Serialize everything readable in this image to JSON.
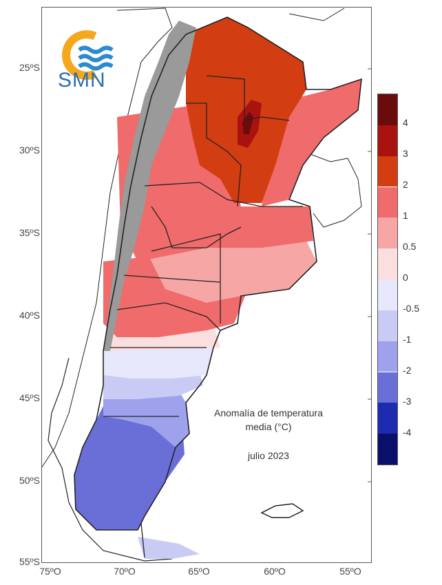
{
  "logo": {
    "text": "SMN",
    "icon": "smn-sun-waves-logo"
  },
  "axes": {
    "lat_labels": [
      "25ºS",
      "30ºS",
      "35ºS",
      "40ºS",
      "45ºS",
      "50ºS",
      "55ºS"
    ],
    "lon_labels": [
      "75ºO",
      "70ºO",
      "65ºO",
      "60ºO",
      "55ºO"
    ]
  },
  "annotation": {
    "title_line1": "Anomalía de temperatura",
    "title_line2": "media (°C)",
    "date": "julio 2023"
  },
  "legend": {
    "labels": [
      "4",
      "3",
      "2",
      "1",
      "0.5",
      "0",
      "-0.5",
      "-1",
      "-2",
      "-3",
      "-4"
    ],
    "colors": [
      "#6b0c0c",
      "#a8120f",
      "#d23d12",
      "#f06b6b",
      "#f7a6a6",
      "#fbdede",
      "#e7e8fb",
      "#c9cbf5",
      "#9ea2ec",
      "#6a6fd8",
      "#1d2bb0",
      "#0a0f6a"
    ]
  },
  "colors": {
    "mountains": "#9a9a9a",
    "border": "#222222"
  }
}
